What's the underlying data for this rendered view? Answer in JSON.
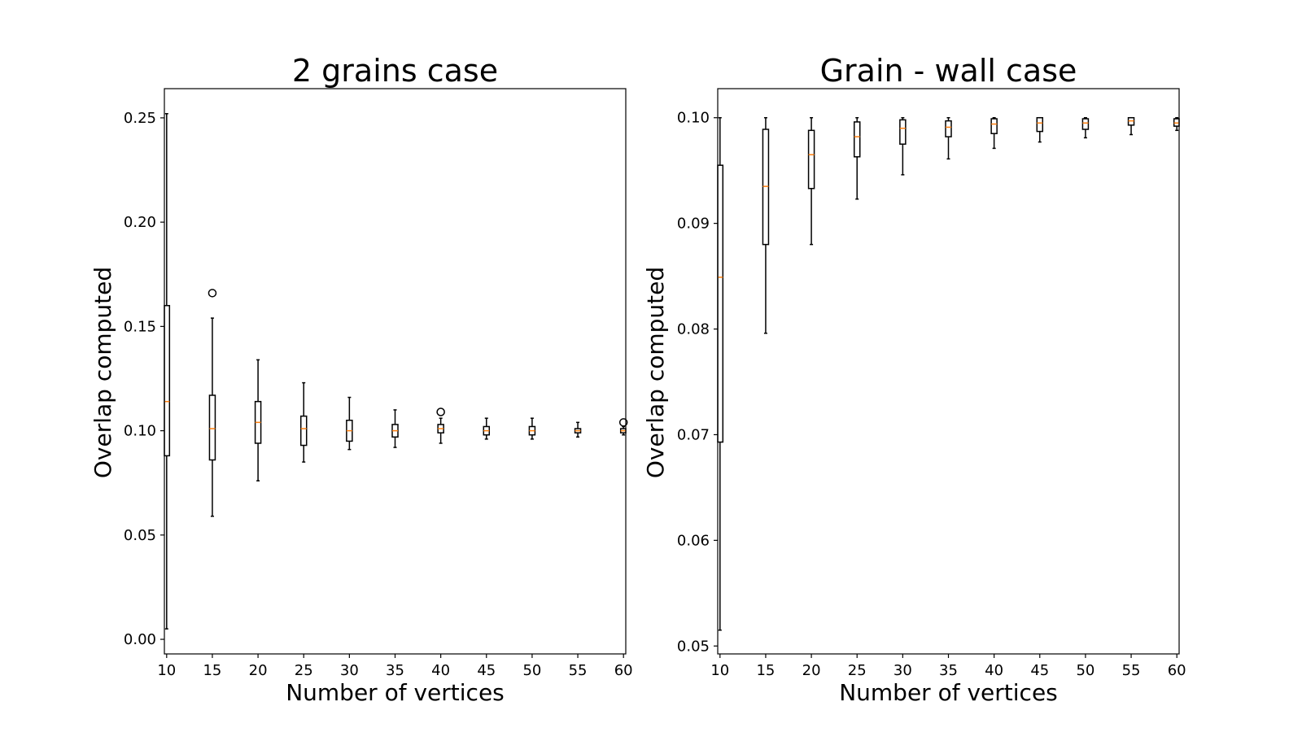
{
  "colors": {
    "median": "#ff7f0e",
    "line": "#000000",
    "background": "#ffffff"
  },
  "chart_data": [
    {
      "type": "box",
      "title": "2 grains case",
      "xlabel": "Number of vertices",
      "ylabel": "Overlap computed",
      "x_ticks": [
        10,
        15,
        20,
        25,
        30,
        35,
        40,
        45,
        50,
        55,
        60
      ],
      "xlim": [
        9.75,
        60.25
      ],
      "ylim": [
        -0.007,
        0.264
      ],
      "y_ticks": [
        0.0,
        0.05,
        0.1,
        0.15,
        0.2,
        0.25
      ],
      "y_tick_labels": [
        "0.00",
        "0.05",
        "0.10",
        "0.15",
        "0.20",
        "0.25"
      ],
      "boxes": [
        {
          "x": 10,
          "whislo": 0.005,
          "q1": 0.088,
          "med": 0.114,
          "q3": 0.16,
          "whishi": 0.252,
          "fliers": []
        },
        {
          "x": 15,
          "whislo": 0.059,
          "q1": 0.086,
          "med": 0.101,
          "q3": 0.117,
          "whishi": 0.154,
          "fliers": [
            0.166
          ]
        },
        {
          "x": 20,
          "whislo": 0.076,
          "q1": 0.094,
          "med": 0.104,
          "q3": 0.114,
          "whishi": 0.134,
          "fliers": []
        },
        {
          "x": 25,
          "whislo": 0.085,
          "q1": 0.093,
          "med": 0.101,
          "q3": 0.107,
          "whishi": 0.123,
          "fliers": []
        },
        {
          "x": 30,
          "whislo": 0.091,
          "q1": 0.095,
          "med": 0.1,
          "q3": 0.105,
          "whishi": 0.116,
          "fliers": []
        },
        {
          "x": 35,
          "whislo": 0.092,
          "q1": 0.097,
          "med": 0.1,
          "q3": 0.103,
          "whishi": 0.11,
          "fliers": []
        },
        {
          "x": 40,
          "whislo": 0.094,
          "q1": 0.099,
          "med": 0.101,
          "q3": 0.103,
          "whishi": 0.106,
          "fliers": [
            0.109
          ]
        },
        {
          "x": 45,
          "whislo": 0.096,
          "q1": 0.098,
          "med": 0.1,
          "q3": 0.102,
          "whishi": 0.106,
          "fliers": []
        },
        {
          "x": 50,
          "whislo": 0.096,
          "q1": 0.098,
          "med": 0.1,
          "q3": 0.102,
          "whishi": 0.106,
          "fliers": []
        },
        {
          "x": 55,
          "whislo": 0.097,
          "q1": 0.099,
          "med": 0.1,
          "q3": 0.101,
          "whishi": 0.104,
          "fliers": []
        },
        {
          "x": 60,
          "whislo": 0.098,
          "q1": 0.099,
          "med": 0.1,
          "q3": 0.101,
          "whishi": 0.102,
          "fliers": [
            0.104
          ]
        }
      ]
    },
    {
      "type": "box",
      "title": "Grain - wall case",
      "xlabel": "Number of vertices",
      "ylabel": "Overlap computed",
      "x_ticks": [
        10,
        15,
        20,
        25,
        30,
        35,
        40,
        45,
        50,
        55,
        60
      ],
      "xlim": [
        9.75,
        60.25
      ],
      "ylim": [
        0.04925,
        0.10275
      ],
      "y_ticks": [
        0.05,
        0.06,
        0.07,
        0.08,
        0.09,
        0.1
      ],
      "y_tick_labels": [
        "0.05",
        "0.06",
        "0.07",
        "0.08",
        "0.09",
        "0.10"
      ],
      "boxes": [
        {
          "x": 10,
          "whislo": 0.0515,
          "q1": 0.0693,
          "med": 0.0849,
          "q3": 0.0955,
          "whishi": 0.1,
          "fliers": []
        },
        {
          "x": 15,
          "whislo": 0.0796,
          "q1": 0.088,
          "med": 0.0935,
          "q3": 0.0989,
          "whishi": 0.1,
          "fliers": []
        },
        {
          "x": 20,
          "whislo": 0.088,
          "q1": 0.0933,
          "med": 0.0965,
          "q3": 0.0988,
          "whishi": 0.1,
          "fliers": []
        },
        {
          "x": 25,
          "whislo": 0.0923,
          "q1": 0.0963,
          "med": 0.0982,
          "q3": 0.0996,
          "whishi": 0.1,
          "fliers": []
        },
        {
          "x": 30,
          "whislo": 0.0946,
          "q1": 0.0975,
          "med": 0.099,
          "q3": 0.0998,
          "whishi": 0.1,
          "fliers": []
        },
        {
          "x": 35,
          "whislo": 0.0961,
          "q1": 0.0982,
          "med": 0.0991,
          "q3": 0.0997,
          "whishi": 0.1,
          "fliers": []
        },
        {
          "x": 40,
          "whislo": 0.0971,
          "q1": 0.0985,
          "med": 0.0994,
          "q3": 0.0999,
          "whishi": 0.1,
          "fliers": []
        },
        {
          "x": 45,
          "whislo": 0.0977,
          "q1": 0.0987,
          "med": 0.0995,
          "q3": 0.1,
          "whishi": 0.1,
          "fliers": []
        },
        {
          "x": 50,
          "whislo": 0.0981,
          "q1": 0.0989,
          "med": 0.0995,
          "q3": 0.0999,
          "whishi": 0.1,
          "fliers": []
        },
        {
          "x": 55,
          "whislo": 0.0984,
          "q1": 0.0993,
          "med": 0.0997,
          "q3": 0.1,
          "whishi": 0.1,
          "fliers": []
        },
        {
          "x": 60,
          "whislo": 0.0988,
          "q1": 0.0992,
          "med": 0.0995,
          "q3": 0.0999,
          "whishi": 0.1,
          "fliers": []
        }
      ]
    }
  ]
}
